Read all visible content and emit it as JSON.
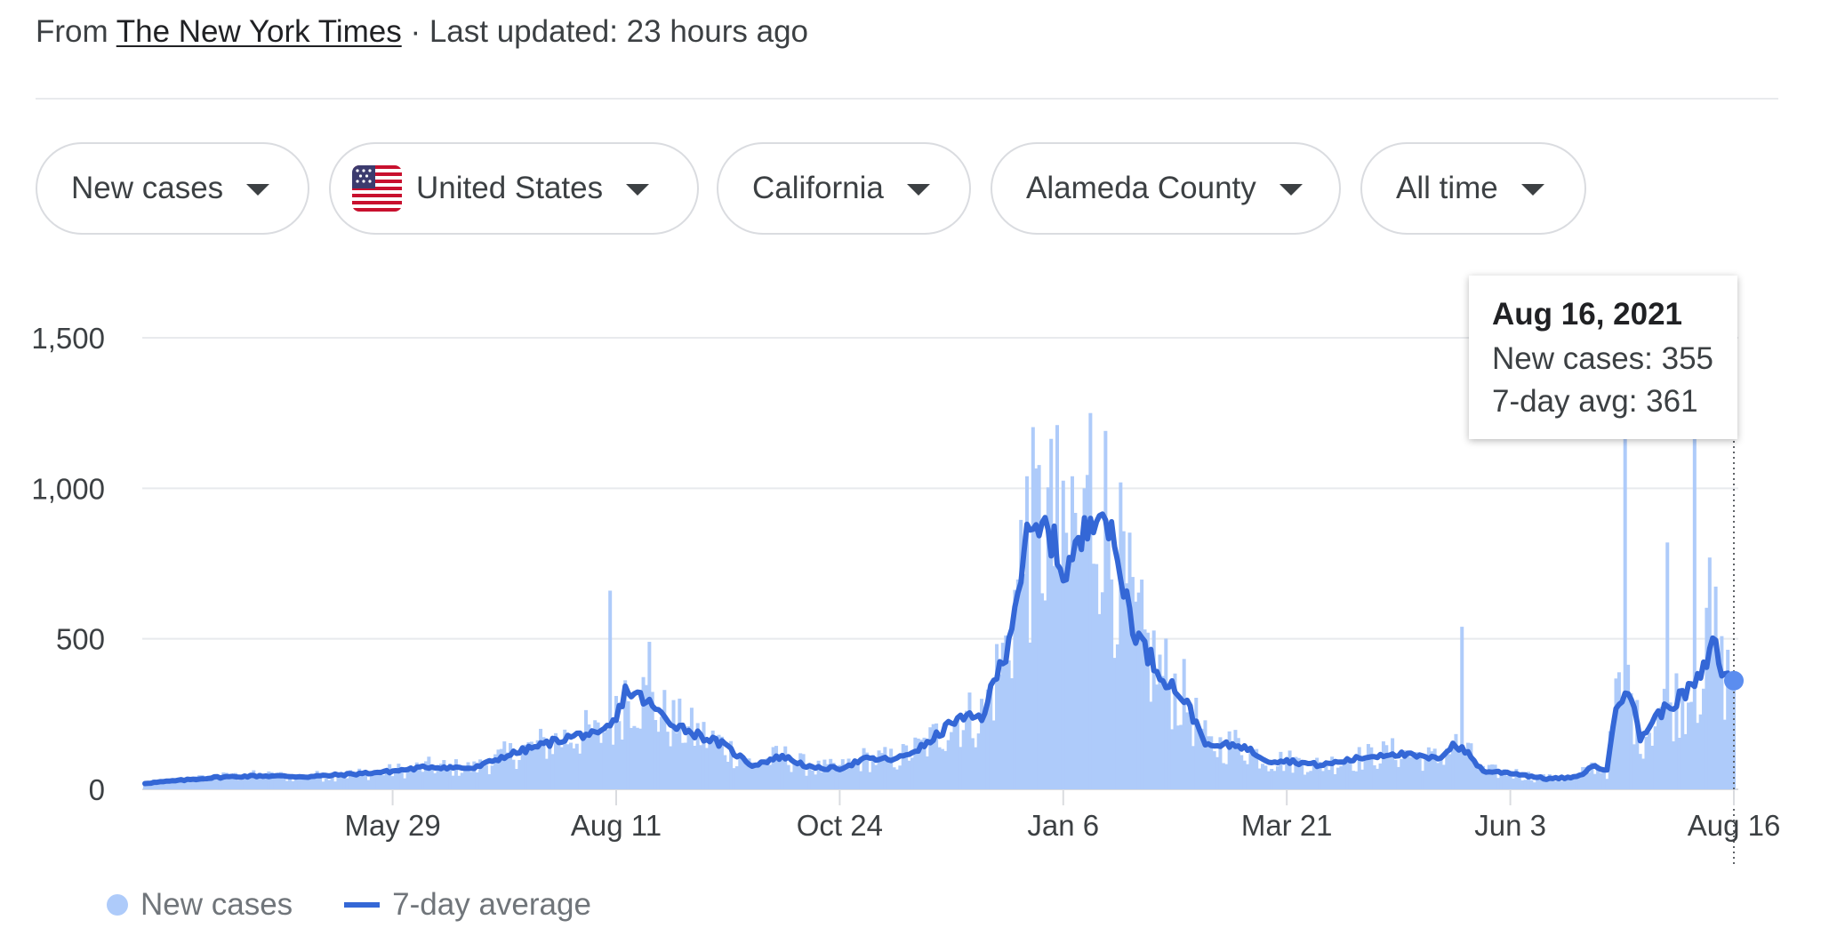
{
  "source": {
    "prefix": "From",
    "link": "The New York Times",
    "updated": "· Last updated: 23 hours ago"
  },
  "chips": [
    {
      "label": "New cases"
    },
    {
      "label": "United States",
      "icon": "us-flag-icon"
    },
    {
      "label": "California"
    },
    {
      "label": "Alameda County"
    },
    {
      "label": "All time"
    }
  ],
  "tooltip": {
    "date": "Aug 16, 2021",
    "new_cases": "New cases: 355",
    "avg": "7-day avg: 361"
  },
  "legend": {
    "new_cases": "New cases",
    "avg": "7-day average"
  },
  "colors": {
    "bars": "#aecbfa",
    "line": "#3467d6",
    "grid": "#e8eaed"
  },
  "chart_data": {
    "type": "bar",
    "x_start": "2020-03-08",
    "x_end": "2021-08-16",
    "ylim": [
      0,
      1500
    ],
    "yticks": [
      "0",
      "500",
      "1,000",
      "1,500"
    ],
    "xticks": [
      {
        "label": "May 29",
        "date": "2020-05-29"
      },
      {
        "label": "Aug 11",
        "date": "2020-08-11"
      },
      {
        "label": "Oct 24",
        "date": "2020-10-24"
      },
      {
        "label": "Jan 6",
        "date": "2021-01-06"
      },
      {
        "label": "Mar 21",
        "date": "2021-03-21"
      },
      {
        "label": "Jun 3",
        "date": "2021-06-03"
      },
      {
        "label": "Aug 16",
        "date": "2021-08-16"
      }
    ],
    "grid": true,
    "legend_position": "bottom-left",
    "series": [
      {
        "name": "7-day average",
        "type": "line",
        "points": [
          [
            "2020-03-08",
            20
          ],
          [
            "2020-03-20",
            30
          ],
          [
            "2020-04-01",
            40
          ],
          [
            "2020-04-15",
            45
          ],
          [
            "2020-05-01",
            42
          ],
          [
            "2020-05-15",
            50
          ],
          [
            "2020-05-29",
            60
          ],
          [
            "2020-06-10",
            75
          ],
          [
            "2020-06-25",
            70
          ],
          [
            "2020-07-05",
            110
          ],
          [
            "2020-07-15",
            140
          ],
          [
            "2020-07-25",
            170
          ],
          [
            "2020-08-01",
            185
          ],
          [
            "2020-08-05",
            175
          ],
          [
            "2020-08-11",
            230
          ],
          [
            "2020-08-14",
            330
          ],
          [
            "2020-08-20",
            300
          ],
          [
            "2020-08-28",
            230
          ],
          [
            "2020-09-05",
            190
          ],
          [
            "2020-09-15",
            150
          ],
          [
            "2020-09-25",
            80
          ],
          [
            "2020-10-05",
            110
          ],
          [
            "2020-10-15",
            70
          ],
          [
            "2020-10-24",
            70
          ],
          [
            "2020-11-01",
            100
          ],
          [
            "2020-11-12",
            100
          ],
          [
            "2020-11-22",
            150
          ],
          [
            "2020-12-01",
            230
          ],
          [
            "2020-12-10",
            240
          ],
          [
            "2020-12-18",
            460
          ],
          [
            "2020-12-25",
            820
          ],
          [
            "2021-01-01",
            870
          ],
          [
            "2021-01-06",
            720
          ],
          [
            "2021-01-12",
            820
          ],
          [
            "2021-01-18",
            980
          ],
          [
            "2021-01-24",
            750
          ],
          [
            "2021-01-30",
            520
          ],
          [
            "2021-02-06",
            400
          ],
          [
            "2021-02-15",
            300
          ],
          [
            "2021-02-23",
            140
          ],
          [
            "2021-03-05",
            150
          ],
          [
            "2021-03-15",
            95
          ],
          [
            "2021-03-21",
            95
          ],
          [
            "2021-04-01",
            80
          ],
          [
            "2021-04-15",
            105
          ],
          [
            "2021-04-25",
            120
          ],
          [
            "2021-05-10",
            100
          ],
          [
            "2021-05-15",
            150
          ],
          [
            "2021-05-20",
            120
          ],
          [
            "2021-05-25",
            60
          ],
          [
            "2021-06-03",
            55
          ],
          [
            "2021-06-15",
            35
          ],
          [
            "2021-06-25",
            40
          ],
          [
            "2021-07-01",
            80
          ],
          [
            "2021-07-05",
            60
          ],
          [
            "2021-07-08",
            290
          ],
          [
            "2021-07-12",
            340
          ],
          [
            "2021-07-16",
            170
          ],
          [
            "2021-07-22",
            250
          ],
          [
            "2021-07-30",
            310
          ],
          [
            "2021-08-05",
            370
          ],
          [
            "2021-08-10",
            500
          ],
          [
            "2021-08-12",
            380
          ],
          [
            "2021-08-16",
            361
          ]
        ]
      },
      {
        "name": "New cases",
        "type": "bar",
        "spikes": [
          [
            "2020-08-09",
            660
          ],
          [
            "2020-08-22",
            490
          ],
          [
            "2021-01-04",
            1210
          ],
          [
            "2021-01-15",
            1250
          ],
          [
            "2021-01-09",
            1040
          ],
          [
            "2020-12-25",
            1040
          ],
          [
            "2021-05-18",
            540
          ],
          [
            "2021-07-11",
            1170
          ],
          [
            "2021-07-25",
            820
          ],
          [
            "2021-08-03",
            1250
          ],
          [
            "2021-08-08",
            770
          ],
          [
            "2021-08-16",
            355
          ]
        ]
      }
    ]
  }
}
